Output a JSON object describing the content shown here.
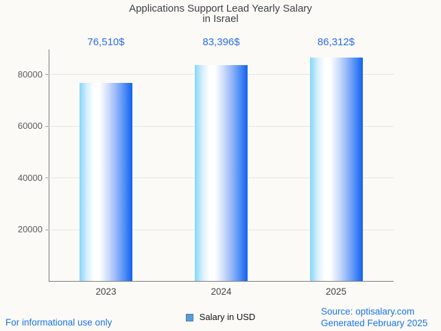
{
  "title": {
    "line1": "Applications Support Lead Yearly Salary",
    "line2": "in Israel"
  },
  "legend": {
    "label": "Salary in USD"
  },
  "footer": {
    "disclaimer": "For informational use only",
    "source": "Source: optisalary.com",
    "generated": "Generated February 2025"
  },
  "colors": {
    "value_label": "#2a6ce0",
    "footer_text": "#1a73e8",
    "title_text": "#3d4146",
    "axis_line": "#7a7a7a",
    "gridline": "#e7e5e1",
    "bar_gradient_left": "#84d6fa",
    "bar_gradient_mid": "#ffffff",
    "bar_gradient_right": "#1261f0",
    "legend_marker_fill": "#5b9bd5",
    "legend_marker_border": "#4379ae",
    "background": "#fbfaf7"
  },
  "chart_data": {
    "type": "bar",
    "title": "Applications Support Lead Yearly Salary in Israel",
    "categories": [
      "2023",
      "2024",
      "2025"
    ],
    "series": [
      {
        "name": "Salary in USD",
        "values": [
          76510,
          83396,
          86312
        ]
      }
    ],
    "value_labels": [
      "76,510$",
      "83,396$",
      "86,312$"
    ],
    "xlabel": "",
    "ylabel": "",
    "yticks": [
      20000,
      40000,
      60000,
      80000
    ],
    "ytick_labels": [
      "20000",
      "40000",
      "60000",
      "80000"
    ],
    "ylim": [
      0,
      89500
    ],
    "grid": true,
    "legend_position": "bottom"
  }
}
